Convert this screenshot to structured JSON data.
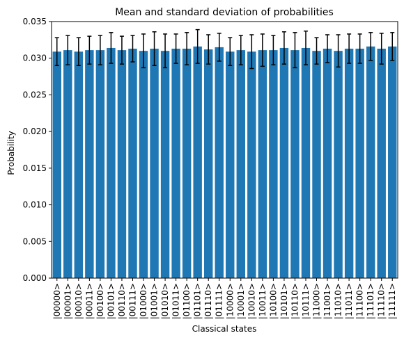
{
  "chart_data": {
    "type": "bar",
    "title": "Mean and standard deviation of probabilities",
    "xlabel": "Classical states",
    "ylabel": "Probability",
    "ylim": [
      0,
      0.035
    ],
    "yticks": [
      0.0,
      0.005,
      0.01,
      0.015,
      0.02,
      0.025,
      0.03,
      0.035
    ],
    "ytick_labels": [
      "0.000",
      "0.005",
      "0.010",
      "0.015",
      "0.020",
      "0.025",
      "0.030",
      "0.035"
    ],
    "grid": false,
    "bar_color": "#1f77b4",
    "error_color": "#000000",
    "categories": [
      "|00000>",
      "|00001>",
      "|00010>",
      "|00011>",
      "|00100>",
      "|00101>",
      "|00110>",
      "|00111>",
      "|01000>",
      "|01001>",
      "|01010>",
      "|01011>",
      "|01100>",
      "|01101>",
      "|01110>",
      "|01111>",
      "|10000>",
      "|10001>",
      "|10010>",
      "|10011>",
      "|10100>",
      "|10101>",
      "|10110>",
      "|10111>",
      "|11000>",
      "|11001>",
      "|11010>",
      "|11011>",
      "|11100>",
      "|11101>",
      "|11110>",
      "|11111>"
    ],
    "values": [
      0.0309,
      0.0311,
      0.0309,
      0.0311,
      0.0311,
      0.0314,
      0.0311,
      0.0313,
      0.031,
      0.0313,
      0.031,
      0.0313,
      0.0313,
      0.0316,
      0.0312,
      0.0315,
      0.0309,
      0.0311,
      0.0309,
      0.0311,
      0.0311,
      0.0314,
      0.0311,
      0.0314,
      0.031,
      0.0313,
      0.031,
      0.0313,
      0.0313,
      0.0316,
      0.0313,
      0.0316
    ],
    "errors": [
      0.0019,
      0.002,
      0.0019,
      0.0019,
      0.002,
      0.0021,
      0.0019,
      0.0018,
      0.0023,
      0.0023,
      0.0023,
      0.002,
      0.0022,
      0.0023,
      0.002,
      0.0019,
      0.0019,
      0.002,
      0.0023,
      0.0022,
      0.002,
      0.0022,
      0.0024,
      0.0023,
      0.0018,
      0.0019,
      0.0022,
      0.002,
      0.002,
      0.0019,
      0.0021,
      0.0019
    ]
  }
}
